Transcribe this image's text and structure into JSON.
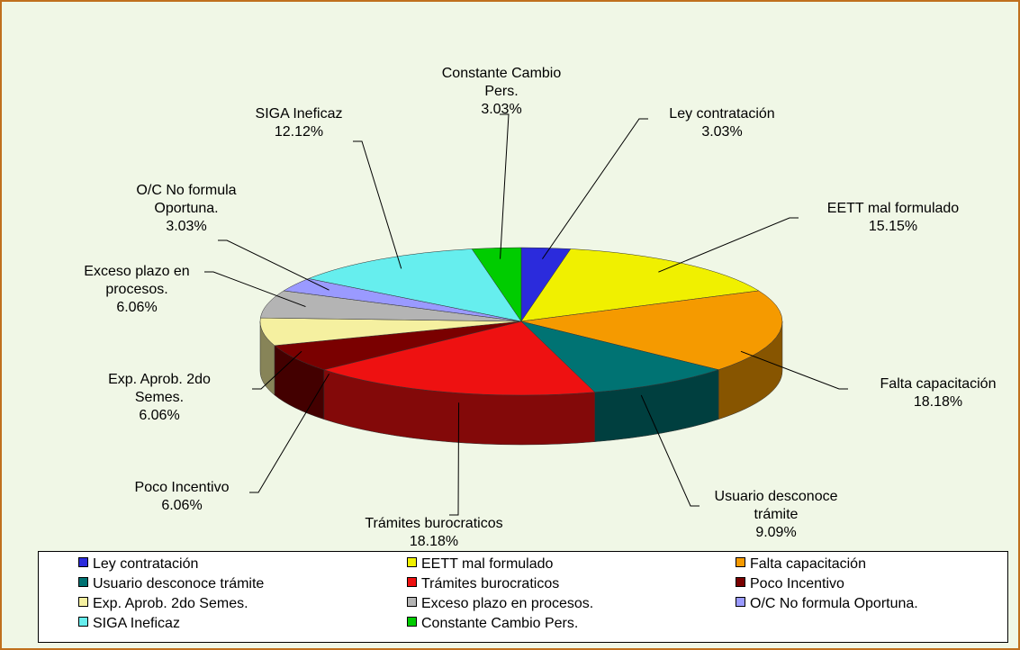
{
  "chart_data": {
    "type": "pie",
    "categories": [
      "Ley contratación",
      "EETT mal formulado",
      "Falta capacitación",
      "Usuario desconoce trámite",
      "Trámites burocraticos",
      "Poco Incentivo",
      "Exp. Aprob. 2do Semes.",
      "Exceso plazo en procesos.",
      "O/C No formula Oportuna.",
      "SIGA Ineficaz",
      "Constante Cambio Pers."
    ],
    "values": [
      3.03,
      15.15,
      18.18,
      9.09,
      18.18,
      6.06,
      6.06,
      6.06,
      3.03,
      12.12,
      3.03
    ],
    "value_labels": [
      "3.03%",
      "15.15%",
      "18.18%",
      "9.09%",
      "18.18%",
      "6.06%",
      "6.06%",
      "6.06%",
      "3.03%",
      "12.12%",
      "3.03%"
    ],
    "colors": [
      "#2b2bdc",
      "#f0f000",
      "#f59a00",
      "#007373",
      "#ee1111",
      "#7a0000",
      "#f5f0a0",
      "#b4b4b4",
      "#9a9aff",
      "#66eeee",
      "#00cc00"
    ],
    "legend": "bottom"
  }
}
